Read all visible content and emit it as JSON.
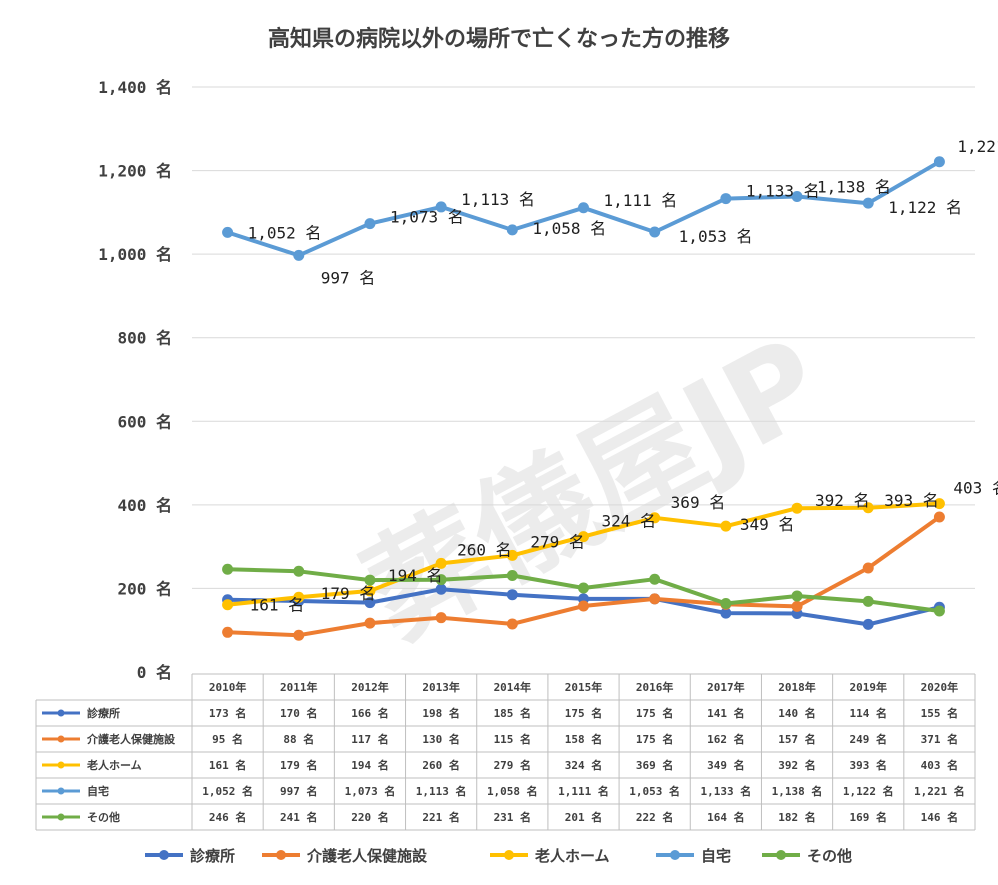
{
  "watermark": "葬儀屋JP",
  "chart_data": {
    "type": "line",
    "title": "高知県の病院以外の場所で亡くなった方の推移",
    "unit": "名",
    "categories": [
      "2010年",
      "2011年",
      "2012年",
      "2013年",
      "2014年",
      "2015年",
      "2016年",
      "2017年",
      "2018年",
      "2019年",
      "2020年"
    ],
    "ylim": [
      0,
      1400
    ],
    "yticks": [
      0,
      200,
      400,
      600,
      800,
      1000,
      1200,
      1400
    ],
    "ytick_labels": [
      "0 名",
      "200 名",
      "400 名",
      "600 名",
      "800 名",
      "1,000 名",
      "1,200 名",
      "1,400 名"
    ],
    "grid": true,
    "legend_position": "bottom",
    "series": [
      {
        "name": "診療所",
        "color": "#4472C4",
        "show_labels": false,
        "values": [
          173,
          170,
          166,
          198,
          185,
          175,
          175,
          141,
          140,
          114,
          155
        ],
        "table": [
          "173 名",
          "170 名",
          "166 名",
          "198 名",
          "185 名",
          "175 名",
          "175 名",
          "141 名",
          "140 名",
          "114 名",
          "155 名"
        ]
      },
      {
        "name": "介護老人保健施設",
        "color": "#ED7D31",
        "show_labels": false,
        "values": [
          95,
          88,
          117,
          130,
          115,
          158,
          175,
          162,
          157,
          249,
          371
        ],
        "table": [
          "95 名",
          "88 名",
          "117 名",
          "130 名",
          "115 名",
          "158 名",
          "175 名",
          "162 名",
          "157 名",
          "249 名",
          "371 名"
        ]
      },
      {
        "name": "老人ホーム",
        "color": "#FFC000",
        "show_labels": true,
        "values": [
          161,
          179,
          194,
          260,
          279,
          324,
          369,
          349,
          392,
          393,
          403
        ],
        "table": [
          "161 名",
          "179 名",
          "194 名",
          "260 名",
          "279 名",
          "324 名",
          "369 名",
          "349 名",
          "392 名",
          "393 名",
          "403 名"
        ]
      },
      {
        "name": "自宅",
        "color": "#5B9BD5",
        "show_labels": true,
        "values": [
          1052,
          997,
          1073,
          1113,
          1058,
          1111,
          1053,
          1133,
          1138,
          1122,
          1221
        ],
        "table": [
          "1,052 名",
          "997 名",
          "1,073 名",
          "1,113 名",
          "1,058 名",
          "1,111 名",
          "1,053 名",
          "1,133 名",
          "1,138 名",
          "1,122 名",
          "1,221 名"
        ]
      },
      {
        "name": "その他",
        "color": "#70AD47",
        "show_labels": false,
        "values": [
          246,
          241,
          220,
          221,
          231,
          201,
          222,
          164,
          182,
          169,
          146
        ],
        "table": [
          "246 名",
          "241 名",
          "220 名",
          "221 名",
          "231 名",
          "201 名",
          "222 名",
          "164 名",
          "182 名",
          "169 名",
          "146 名"
        ]
      }
    ]
  }
}
